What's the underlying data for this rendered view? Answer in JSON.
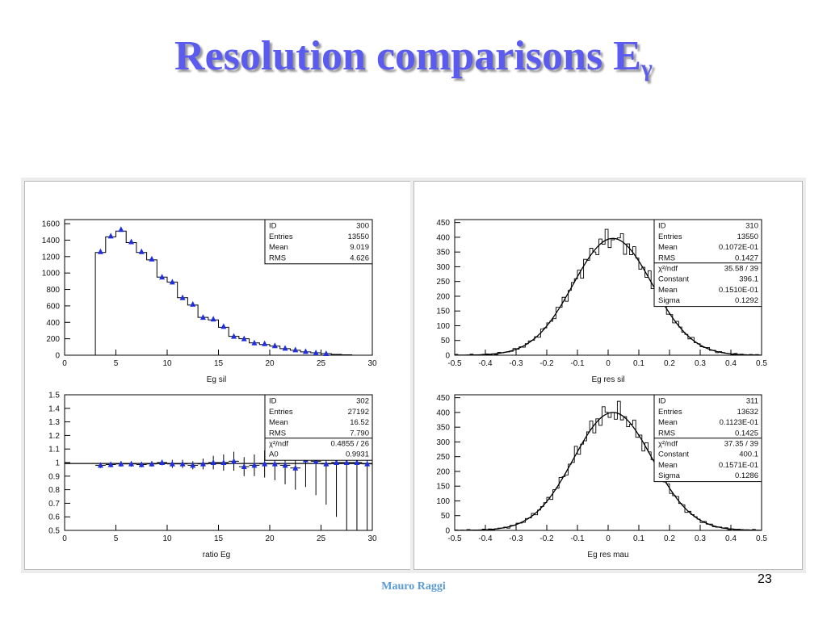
{
  "slide": {
    "title": "Resolution comparisons E",
    "title_sub": "γ",
    "footer": "Mauro Raggi",
    "page_number": "23"
  },
  "chart_data": [
    {
      "type": "histogram",
      "xlabel": "Eg sil",
      "xlim": [
        0,
        30
      ],
      "ylim": [
        0,
        1650
      ],
      "xticks": [
        0,
        5,
        10,
        15,
        20,
        25,
        30
      ],
      "yticks": [
        0,
        200,
        400,
        600,
        800,
        1000,
        1200,
        1400,
        1600
      ],
      "hist_bin_width": 1,
      "hist_x0": 3,
      "hist_values": [
        1250,
        1440,
        1510,
        1370,
        1250,
        1160,
        950,
        890,
        700,
        610,
        460,
        430,
        340,
        230,
        200,
        150,
        130,
        110,
        80,
        60,
        40,
        30,
        20,
        10,
        5
      ],
      "markers_x": [
        3.5,
        4.5,
        5.5,
        6.5,
        7.5,
        8.5,
        9.5,
        10.5,
        11.5,
        12.5,
        13.5,
        14.5,
        15.5,
        16.5,
        17.5,
        18.5,
        19.5,
        20.5,
        21.5,
        22.5,
        23.5,
        24.5,
        25.5
      ],
      "markers_y": [
        1260,
        1450,
        1530,
        1380,
        1260,
        1170,
        950,
        890,
        700,
        620,
        460,
        440,
        350,
        230,
        200,
        150,
        140,
        115,
        85,
        65,
        45,
        30,
        20
      ],
      "stats": [
        [
          "ID",
          "300"
        ],
        [
          "Entries",
          "13550"
        ],
        [
          "Mean",
          "9.019"
        ],
        [
          "RMS",
          "4.626"
        ]
      ]
    },
    {
      "type": "histogram",
      "xlabel": "Eg res sil",
      "xlim": [
        -0.5,
        0.5
      ],
      "ylim": [
        0,
        460
      ],
      "xticks": [
        -0.5,
        -0.4,
        -0.3,
        -0.2,
        -0.1,
        0,
        0.1,
        0.2,
        0.3,
        0.4,
        0.5
      ],
      "yticks": [
        0,
        50,
        100,
        150,
        200,
        250,
        300,
        350,
        400,
        450
      ],
      "gauss": {
        "constant": 396.1,
        "mean": 0.0151,
        "sigma": 0.1292
      },
      "stats": [
        [
          "ID",
          "310"
        ],
        [
          "Entries",
          "13550"
        ],
        [
          "Mean",
          "0.1072E-01"
        ],
        [
          "RMS",
          "0.1427"
        ],
        [
          "χ²/ndf",
          "35.58  /  39"
        ],
        [
          "Constant",
          "396.1"
        ],
        [
          "Mean",
          "0.1510E-01"
        ],
        [
          "Sigma",
          "0.1292"
        ]
      ]
    },
    {
      "type": "scatter",
      "xlabel": "ratio Eg",
      "xlim": [
        0,
        30
      ],
      "ylim": [
        0.5,
        1.5
      ],
      "xticks": [
        0,
        5,
        10,
        15,
        20,
        25,
        30
      ],
      "yticks": [
        0.5,
        0.6,
        0.7,
        0.8,
        0.9,
        1,
        1.1,
        1.2,
        1.3,
        1.4,
        1.5
      ],
      "fit_line": 0.9931,
      "x": [
        3.5,
        4.5,
        5.5,
        6.5,
        7.5,
        8.5,
        9.5,
        10.5,
        11.5,
        12.5,
        13.5,
        14.5,
        15.5,
        16.5,
        17.5,
        18.5,
        19.5,
        20.5,
        21.5,
        22.5,
        23.5,
        24.5,
        25.5,
        26.5,
        27.5,
        28.5,
        29.5
      ],
      "y": [
        0.98,
        0.985,
        0.99,
        0.99,
        0.985,
        0.99,
        1.0,
        0.99,
        0.99,
        0.98,
        0.99,
        1.0,
        1.0,
        1.01,
        0.97,
        0.98,
        0.99,
        0.99,
        0.98,
        0.96,
        1.02,
        1.01,
        0.99,
        1.0,
        1.0,
        1.0,
        0.99
      ],
      "yerr": [
        0.02,
        0.02,
        0.02,
        0.02,
        0.02,
        0.02,
        0.02,
        0.03,
        0.03,
        0.03,
        0.04,
        0.05,
        0.06,
        0.07,
        0.07,
        0.08,
        0.1,
        0.12,
        0.14,
        0.16,
        0.2,
        0.25,
        0.3,
        0.4,
        0.5,
        0.5,
        0.5
      ],
      "stats": [
        [
          "ID",
          "302"
        ],
        [
          "Entries",
          "27192"
        ],
        [
          "Mean",
          "16.52"
        ],
        [
          "RMS",
          "7.790"
        ],
        [
          "χ²/ndf",
          "0.4855  /  26"
        ],
        [
          "A0",
          "0.9931"
        ]
      ]
    },
    {
      "type": "histogram",
      "xlabel": "Eg res mau",
      "xlim": [
        -0.5,
        0.5
      ],
      "ylim": [
        0,
        460
      ],
      "xticks": [
        -0.5,
        -0.4,
        -0.3,
        -0.2,
        -0.1,
        0,
        0.1,
        0.2,
        0.3,
        0.4,
        0.5
      ],
      "yticks": [
        0,
        50,
        100,
        150,
        200,
        250,
        300,
        350,
        400,
        450
      ],
      "gauss": {
        "constant": 400.1,
        "mean": 0.0157,
        "sigma": 0.1286
      },
      "stats": [
        [
          "ID",
          "311"
        ],
        [
          "Entries",
          "13632"
        ],
        [
          "Mean",
          "0.1123E-01"
        ],
        [
          "RMS",
          "0.1425"
        ],
        [
          "χ²/ndf",
          "37.35  /  39"
        ],
        [
          "Constant",
          "400.1"
        ],
        [
          "Mean",
          "0.1571E-01"
        ],
        [
          "Sigma",
          "0.1286"
        ]
      ]
    }
  ]
}
